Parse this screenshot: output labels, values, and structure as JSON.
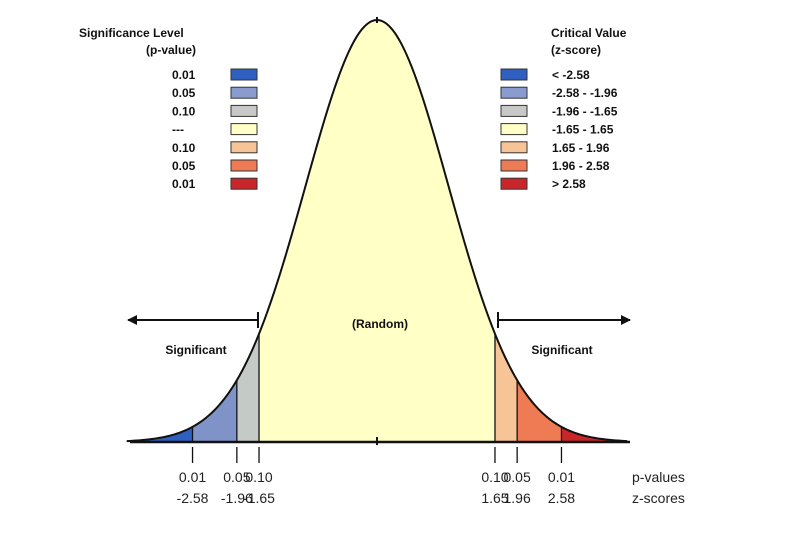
{
  "colors": {
    "background": "#ffffff",
    "random": "#ffffc6",
    "blue_2_58": "#2f5fbf",
    "blue_1_96": "#7f93c8",
    "grey_1_65": "#c4cac6",
    "peach_1_65": "#f7c497",
    "orange_1_96": "#ef7b55",
    "red_2_58": "#c8262b",
    "curve": "#111111"
  },
  "legend_left": {
    "title_line1": "Significance Level",
    "title_line2": "(p-value)",
    "items": [
      {
        "label": "0.01",
        "color": "#2f5fbf"
      },
      {
        "label": "0.05",
        "color": "#8a9bd0"
      },
      {
        "label": "0.10",
        "color": "#c8c8c8"
      },
      {
        "label": "---",
        "color": "#ffffc6"
      },
      {
        "label": "0.10",
        "color": "#f7c497"
      },
      {
        "label": "0.05",
        "color": "#ef7b55"
      },
      {
        "label": "0.01",
        "color": "#c8262b"
      }
    ]
  },
  "legend_right": {
    "title_line1": "Critical Value",
    "title_line2": "(z-score)",
    "items": [
      {
        "label": "< -2.58",
        "color": "#2f5fbf"
      },
      {
        "label": "-2.58 - -1.96",
        "color": "#8a9bd0"
      },
      {
        "label": "-1.96 - -1.65",
        "color": "#c8c8c8"
      },
      {
        "label": "-1.65 - 1.65",
        "color": "#ffffc6"
      },
      {
        "label": "1.65 - 1.96",
        "color": "#f7c497"
      },
      {
        "label": "1.96 - 2.58",
        "color": "#ef7b55"
      },
      {
        "label": "> 2.58",
        "color": "#c8262b"
      }
    ]
  },
  "labels": {
    "random": "(Random)",
    "significant_left": "Significant",
    "significant_right": "Significant",
    "pvalues_caption": "p-values",
    "zscores_caption": "z-scores"
  },
  "ticks": [
    {
      "z": -2.58,
      "p_label": "0.01",
      "z_label": "-2.58"
    },
    {
      "z": -1.96,
      "p_label": "0.05",
      "z_label": "-1.96"
    },
    {
      "z": -1.65,
      "p_label": "0.10",
      "z_label": "-1.65"
    },
    {
      "z": 1.65,
      "p_label": "0.10",
      "z_label": "1.65"
    },
    {
      "z": 1.96,
      "p_label": "0.05",
      "z_label": "1.96"
    },
    {
      "z": 2.58,
      "p_label": "0.01",
      "z_label": "2.58"
    }
  ]
}
